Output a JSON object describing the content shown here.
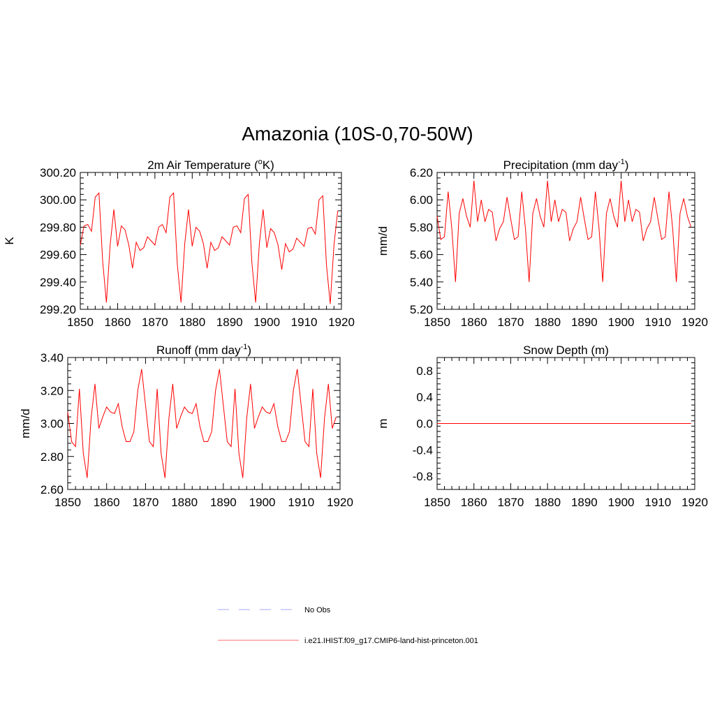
{
  "title": "Amazonia (10S-0,70-50W)",
  "legend": {
    "items": [
      {
        "label": "No Obs",
        "color": "#aaaaff",
        "style": "dashed"
      },
      {
        "label": "i.e21.IHIST.f09_g17.CMIP6-land-hist-princeton.001",
        "color": "#ff6b6b",
        "style": "solid"
      }
    ]
  },
  "line_color": "#ff0000",
  "chart_data": [
    {
      "type": "line",
      "title": "2m Air Temperature (°K)",
      "title_parts": {
        "pre": "2m Air Temperature (",
        "sup": "o",
        "post": "K)"
      },
      "xlabel": "",
      "ylabel": "K",
      "xlim": [
        1850,
        1920
      ],
      "ylim": [
        299.2,
        300.2
      ],
      "xticks": [
        1850,
        1860,
        1870,
        1880,
        1890,
        1900,
        1910,
        1920
      ],
      "xtick_labels": [
        "1850",
        "1860",
        "1870",
        "1880",
        "1890",
        "1900",
        "1910",
        "1920"
      ],
      "yticks": [
        299.2,
        299.4,
        299.6,
        299.8,
        300.0,
        300.2
      ],
      "ytick_labels": [
        "299.20",
        "299.40",
        "299.60",
        "299.80",
        "300.00",
        "300.20"
      ],
      "x_start": 1850,
      "series": [
        {
          "values": [
            299.67,
            299.81,
            299.82,
            299.77,
            300.02,
            300.05,
            299.55,
            299.25,
            299.67,
            299.93,
            299.66,
            299.81,
            299.78,
            299.67,
            299.5,
            299.69,
            299.63,
            299.65,
            299.73,
            299.7,
            299.67,
            299.8,
            299.82,
            299.76,
            300.02,
            300.05,
            299.53,
            299.25,
            299.68,
            299.93,
            299.66,
            299.8,
            299.77,
            299.68,
            299.5,
            299.69,
            299.63,
            299.65,
            299.73,
            299.7,
            299.67,
            299.8,
            299.81,
            299.76,
            300.01,
            300.04,
            299.54,
            299.25,
            299.68,
            299.93,
            299.65,
            299.79,
            299.76,
            299.67,
            299.49,
            299.68,
            299.62,
            299.64,
            299.72,
            299.69,
            299.66,
            299.79,
            299.8,
            299.75,
            300.0,
            300.03,
            299.52,
            299.24,
            299.67,
            299.92
          ]
        }
      ]
    },
    {
      "type": "line",
      "title": "Precipitation (mm day-1)",
      "title_parts": {
        "pre": "Precipitation (mm day",
        "sup": "-1",
        "post": ")"
      },
      "xlabel": "",
      "ylabel": "mm/d",
      "xlim": [
        1850,
        1920
      ],
      "ylim": [
        5.2,
        6.2
      ],
      "xticks": [
        1850,
        1860,
        1870,
        1880,
        1890,
        1900,
        1910,
        1920
      ],
      "xtick_labels": [
        "1850",
        "1860",
        "1870",
        "1880",
        "1890",
        "1900",
        "1910",
        "1920"
      ],
      "yticks": [
        5.2,
        5.4,
        5.6,
        5.8,
        6.0,
        6.2
      ],
      "ytick_labels": [
        "5.20",
        "5.40",
        "5.60",
        "5.80",
        "6.00",
        "6.20"
      ],
      "x_start": 1850,
      "series": [
        {
          "values": [
            5.88,
            5.71,
            5.73,
            6.06,
            5.79,
            5.4,
            5.9,
            6.01,
            5.88,
            5.8,
            6.14,
            5.84,
            6.0,
            5.84,
            5.93,
            5.91,
            5.7,
            5.79,
            5.84,
            6.02,
            5.86,
            5.71,
            5.73,
            6.06,
            5.79,
            5.4,
            5.9,
            6.01,
            5.88,
            5.8,
            6.14,
            5.84,
            6.0,
            5.84,
            5.93,
            5.91,
            5.7,
            5.79,
            5.84,
            6.02,
            5.86,
            5.71,
            5.73,
            6.06,
            5.79,
            5.4,
            5.9,
            6.01,
            5.88,
            5.8,
            6.14,
            5.84,
            6.0,
            5.84,
            5.93,
            5.91,
            5.7,
            5.79,
            5.84,
            6.02,
            5.86,
            5.71,
            5.73,
            6.06,
            5.79,
            5.4,
            5.9,
            6.01,
            5.88,
            5.8
          ]
        }
      ]
    },
    {
      "type": "line",
      "title": "Runoff (mm day-1)",
      "title_parts": {
        "pre": "Runoff (mm day",
        "sup": "-1",
        "post": ")"
      },
      "xlabel": "",
      "ylabel": "mm/d",
      "xlim": [
        1850,
        1920
      ],
      "ylim": [
        2.6,
        3.4
      ],
      "xticks": [
        1850,
        1860,
        1870,
        1880,
        1890,
        1900,
        1910,
        1920
      ],
      "xtick_labels": [
        "1850",
        "1860",
        "1870",
        "1880",
        "1890",
        "1900",
        "1910",
        "1920"
      ],
      "yticks": [
        2.6,
        2.8,
        3.0,
        3.2,
        3.4
      ],
      "ytick_labels": [
        "2.60",
        "2.80",
        "3.00",
        "3.20",
        "3.40"
      ],
      "x_start": 1850,
      "series": [
        {
          "values": [
            3.07,
            2.89,
            2.86,
            3.21,
            2.82,
            2.67,
            3.03,
            3.24,
            2.97,
            3.04,
            3.1,
            3.07,
            3.06,
            3.12,
            2.98,
            2.89,
            2.89,
            2.95,
            3.2,
            3.33,
            3.11,
            2.89,
            2.86,
            3.21,
            2.82,
            2.67,
            3.03,
            3.24,
            2.97,
            3.04,
            3.1,
            3.07,
            3.06,
            3.12,
            2.98,
            2.89,
            2.89,
            2.95,
            3.2,
            3.33,
            3.11,
            2.89,
            2.86,
            3.21,
            2.82,
            2.67,
            3.03,
            3.24,
            2.97,
            3.04,
            3.1,
            3.07,
            3.06,
            3.12,
            2.98,
            2.89,
            2.89,
            2.95,
            3.2,
            3.33,
            3.11,
            2.89,
            2.86,
            3.21,
            2.82,
            2.67,
            3.03,
            3.24,
            2.97,
            3.04
          ]
        }
      ]
    },
    {
      "type": "line",
      "title": "Snow Depth (m)",
      "title_parts": {
        "pre": "Snow Depth (m)",
        "sup": "",
        "post": ""
      },
      "xlabel": "",
      "ylabel": "m",
      "xlim": [
        1850,
        1920
      ],
      "ylim": [
        -1.0,
        1.0
      ],
      "xticks": [
        1850,
        1860,
        1870,
        1880,
        1890,
        1900,
        1910,
        1920
      ],
      "xtick_labels": [
        "1850",
        "1860",
        "1870",
        "1880",
        "1890",
        "1900",
        "1910",
        "1920"
      ],
      "yticks": [
        -0.8,
        -0.4,
        0.0,
        0.4,
        0.8
      ],
      "ytick_labels": [
        "-0.8",
        "-0.4",
        "0.0",
        "0.4",
        "0.8"
      ],
      "x_start": 1850,
      "series": [
        {
          "values": [
            0,
            0,
            0,
            0,
            0,
            0,
            0,
            0,
            0,
            0,
            0,
            0,
            0,
            0,
            0,
            0,
            0,
            0,
            0,
            0,
            0,
            0,
            0,
            0,
            0,
            0,
            0,
            0,
            0,
            0,
            0,
            0,
            0,
            0,
            0,
            0,
            0,
            0,
            0,
            0,
            0,
            0,
            0,
            0,
            0,
            0,
            0,
            0,
            0,
            0,
            0,
            0,
            0,
            0,
            0,
            0,
            0,
            0,
            0,
            0,
            0,
            0,
            0,
            0,
            0,
            0,
            0,
            0,
            0,
            0
          ]
        }
      ]
    }
  ]
}
